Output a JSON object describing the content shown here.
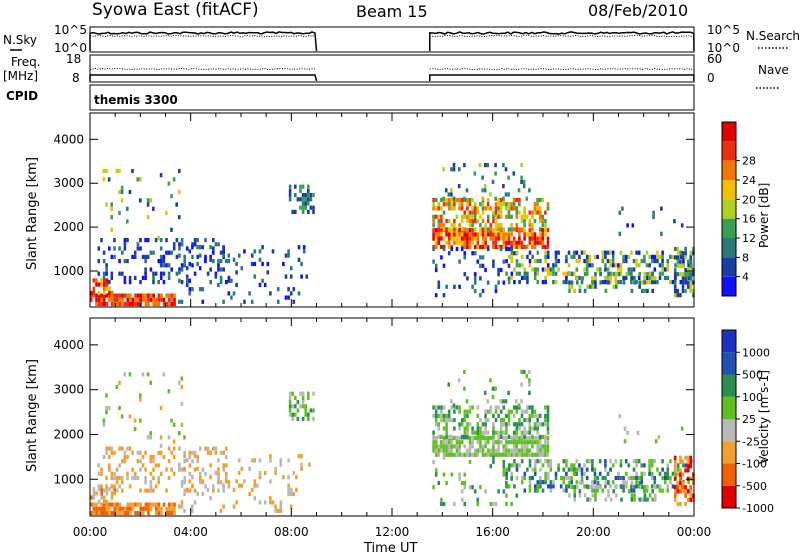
{
  "header": {
    "station": "Syowa East (fitACF)",
    "beam": "Beam 15",
    "date": "08/Feb/2010"
  },
  "strip": {
    "nsky_label": "N.Sky",
    "nsearch_label": "N.Search",
    "freq_label_top": "Freq.",
    "freq_label_bottom": "[MHz]",
    "nave_label": "Nave",
    "cpid_label": "CPID",
    "cpid_value": "themis 3300",
    "noise_ticks": [
      "10^5",
      "10^0"
    ],
    "freq_ticks": [
      "18",
      "8"
    ],
    "nave_ticks": [
      "60",
      "0"
    ],
    "nsearch_ticks": [
      "10^5",
      "10^0"
    ]
  },
  "colors": {
    "power": [
      "#1010ff",
      "#1b3fa0",
      "#2a7a7a",
      "#3aa050",
      "#b0d020",
      "#f0c000",
      "#f07800",
      "#e83010",
      "#e00000"
    ],
    "velocity": [
      "#e00000",
      "#f06000",
      "#f0a030",
      "#b8b8b8",
      "#60c020",
      "#2a9050",
      "#2050b0",
      "#2030c0"
    ]
  },
  "chart_data": [
    {
      "type": "heatmap",
      "quantity": "power",
      "ylabel": "Slant Range [km]",
      "xlabel": "Time UT",
      "x_ticks": [
        "00:00",
        "04:00",
        "08:00",
        "12:00",
        "16:00",
        "20:00",
        "00:00"
      ],
      "x_range_hours": [
        0,
        24
      ],
      "y_ticks": [
        1000,
        2000,
        3000,
        4000
      ],
      "ylim": [
        180,
        4600
      ],
      "colorbar": {
        "label": "Power [dB]",
        "ticks": [
          4,
          8,
          12,
          16,
          20,
          24,
          28
        ],
        "range": [
          0,
          30
        ]
      },
      "data_gaps_hours": [
        [
          9.0,
          13.5
        ]
      ]
    },
    {
      "type": "heatmap",
      "quantity": "velocity",
      "ylabel": "Slant Range [km]",
      "xlabel": "Time UT",
      "x_ticks": [
        "00:00",
        "04:00",
        "08:00",
        "12:00",
        "16:00",
        "20:00",
        "00:00"
      ],
      "x_range_hours": [
        0,
        24
      ],
      "y_ticks": [
        1000,
        2000,
        3000,
        4000
      ],
      "ylim": [
        180,
        4600
      ],
      "colorbar": {
        "label": "Velocity [m s-1]",
        "ticks": [
          "1000",
          "500",
          "100",
          "25",
          "-25",
          "-100",
          "-500",
          "-1000"
        ]
      },
      "data_gaps_hours": [
        [
          9.0,
          13.5
        ]
      ]
    }
  ]
}
